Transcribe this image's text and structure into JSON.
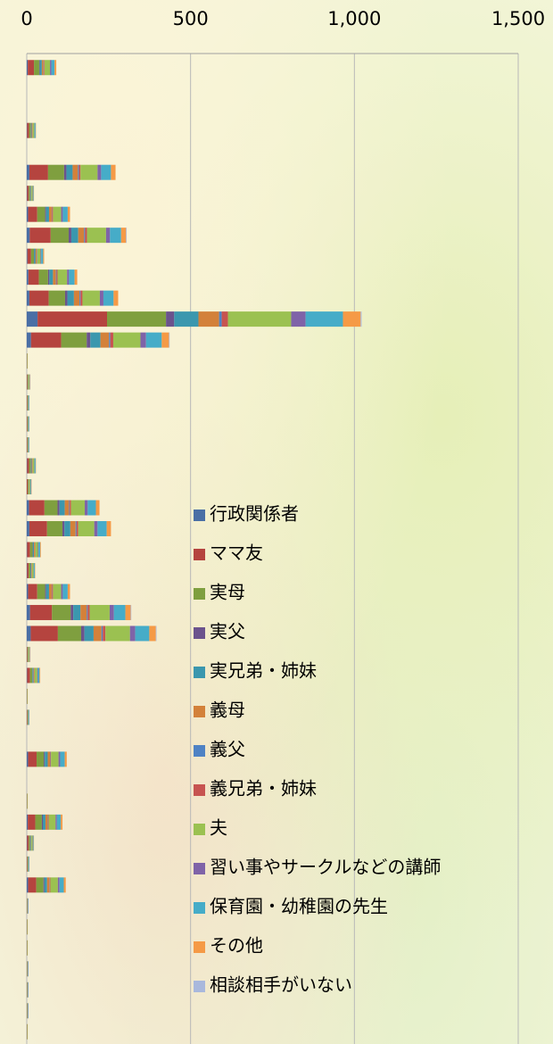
{
  "chart_data": {
    "type": "stacked-barh",
    "categories": [
      null,
      null,
      null,
      null,
      null,
      null,
      null,
      null,
      null,
      null,
      null,
      null,
      null,
      null,
      null,
      null,
      null,
      null,
      null,
      null,
      null,
      null,
      null,
      null,
      null,
      null,
      null,
      null,
      null,
      null,
      null,
      null,
      null,
      null,
      null,
      null,
      null,
      null,
      null,
      null,
      null,
      null,
      null,
      null,
      null,
      null,
      null
    ],
    "xlim": [
      0,
      1500
    ],
    "xticks": [
      0,
      500,
      {
        "value": 1000,
        "label": "1,000"
      },
      {
        "value": 1500,
        "label": "1,500"
      }
    ],
    "grid": true,
    "legend": "center",
    "series": [
      {
        "name": "行政関係者",
        "color": "#4a6fa5",
        "values": [
          3,
          0,
          0,
          1,
          0,
          8,
          1,
          4,
          9,
          2,
          5,
          8,
          33,
          13,
          0,
          0,
          0,
          0,
          0,
          1,
          0,
          7,
          8,
          1,
          1,
          4,
          10,
          12,
          0,
          1,
          0,
          0,
          0,
          4,
          0,
          0,
          3,
          1,
          0,
          4,
          0,
          0,
          0,
          0,
          0,
          0,
          0
        ]
      },
      {
        "name": "ママ友",
        "color": "#b5443f",
        "values": [
          19,
          0,
          0,
          6,
          0,
          57,
          5,
          28,
          64,
          11,
          32,
          59,
          212,
          92,
          1,
          2,
          2,
          2,
          2,
          6,
          3,
          47,
          54,
          9,
          5,
          28,
          67,
          83,
          2,
          9,
          1,
          2,
          0,
          26,
          0,
          1,
          23,
          5,
          2,
          25,
          1,
          1,
          1,
          1,
          1,
          1,
          1
        ]
      },
      {
        "name": "実母",
        "color": "#7f9f3f",
        "values": [
          16,
          0,
          0,
          5,
          0,
          49,
          4,
          24,
          55,
          9,
          28,
          50,
          180,
          78,
          1,
          2,
          1,
          1,
          1,
          5,
          3,
          40,
          47,
          8,
          5,
          24,
          57,
          71,
          2,
          7,
          1,
          1,
          0,
          22,
          0,
          1,
          20,
          4,
          1,
          22,
          1,
          1,
          1,
          1,
          1,
          1,
          1
        ]
      },
      {
        "name": "実父",
        "color": "#6b538d",
        "values": [
          2,
          0,
          0,
          1,
          0,
          7,
          1,
          3,
          8,
          1,
          4,
          7,
          25,
          11,
          0,
          0,
          0,
          0,
          0,
          1,
          0,
          6,
          6,
          1,
          1,
          3,
          8,
          10,
          0,
          1,
          0,
          0,
          0,
          3,
          0,
          0,
          3,
          1,
          0,
          3,
          0,
          0,
          0,
          0,
          0,
          0,
          0
        ]
      },
      {
        "name": "実兄弟・姉妹",
        "color": "#3b97ae",
        "values": [
          6,
          0,
          0,
          2,
          0,
          19,
          2,
          9,
          21,
          4,
          11,
          20,
          74,
          31,
          0,
          1,
          1,
          1,
          1,
          2,
          1,
          16,
          18,
          3,
          2,
          9,
          22,
          28,
          1,
          3,
          0,
          1,
          0,
          9,
          0,
          0,
          8,
          2,
          1,
          8,
          0,
          0,
          0,
          0,
          0,
          0,
          0
        ]
      },
      {
        "name": "義母",
        "color": "#d3813a",
        "values": [
          5,
          0,
          0,
          2,
          0,
          16,
          1,
          8,
          18,
          3,
          9,
          17,
          63,
          26,
          0,
          1,
          0,
          0,
          0,
          2,
          1,
          13,
          16,
          3,
          2,
          8,
          19,
          24,
          1,
          2,
          0,
          0,
          0,
          7,
          0,
          0,
          7,
          1,
          0,
          7,
          0,
          0,
          0,
          0,
          0,
          0,
          0
        ]
      },
      {
        "name": "義父",
        "color": "#4f82c4",
        "values": [
          1,
          0,
          0,
          0,
          0,
          3,
          0,
          1,
          3,
          1,
          2,
          3,
          8,
          4,
          0,
          0,
          0,
          0,
          0,
          0,
          0,
          2,
          3,
          0,
          0,
          1,
          3,
          4,
          0,
          0,
          0,
          0,
          0,
          1,
          0,
          0,
          1,
          0,
          0,
          1,
          0,
          0,
          0,
          0,
          0,
          0,
          0
        ]
      },
      {
        "name": "義兄弟・姉妹",
        "color": "#c75451",
        "values": [
          2,
          0,
          0,
          1,
          0,
          5,
          0,
          3,
          6,
          1,
          3,
          6,
          19,
          9,
          0,
          0,
          0,
          0,
          0,
          1,
          0,
          4,
          5,
          1,
          0,
          3,
          6,
          8,
          0,
          1,
          0,
          0,
          0,
          2,
          0,
          0,
          2,
          0,
          0,
          2,
          0,
          0,
          0,
          0,
          0,
          0,
          0
        ]
      },
      {
        "name": "夫",
        "color": "#9bc151",
        "values": [
          17,
          0,
          0,
          5,
          0,
          52,
          4,
          25,
          58,
          10,
          29,
          53,
          193,
          83,
          1,
          2,
          2,
          2,
          2,
          5,
          3,
          42,
          49,
          8,
          5,
          25,
          61,
          75,
          2,
          8,
          1,
          2,
          0,
          23,
          0,
          1,
          21,
          4,
          2,
          23,
          1,
          1,
          1,
          1,
          1,
          1,
          1
        ]
      },
      {
        "name": "習い事やサークルなどの講師",
        "color": "#7f63a8",
        "values": [
          4,
          0,
          0,
          1,
          0,
          11,
          1,
          5,
          12,
          2,
          6,
          11,
          44,
          17,
          0,
          1,
          1,
          1,
          1,
          1,
          1,
          9,
          10,
          2,
          1,
          5,
          13,
          16,
          1,
          2,
          0,
          1,
          0,
          5,
          0,
          0,
          4,
          1,
          1,
          5,
          1,
          0,
          0,
          1,
          1,
          1,
          0
        ]
      },
      {
        "name": "保育園・幼稚園の先生",
        "color": "#46acc8",
        "values": [
          10,
          0,
          0,
          3,
          0,
          30,
          2,
          15,
          34,
          6,
          17,
          31,
          114,
          48,
          0,
          1,
          1,
          1,
          1,
          3,
          2,
          25,
          28,
          5,
          3,
          15,
          35,
          43,
          1,
          5,
          0,
          1,
          0,
          14,
          0,
          0,
          12,
          2,
          1,
          13,
          1,
          0,
          0,
          1,
          1,
          1,
          0
        ]
      },
      {
        "name": "その他",
        "color": "#f59a46",
        "values": [
          5,
          0,
          0,
          1,
          0,
          14,
          1,
          7,
          15,
          3,
          8,
          14,
          54,
          22,
          0,
          1,
          0,
          0,
          0,
          1,
          1,
          11,
          13,
          2,
          1,
          7,
          16,
          20,
          1,
          2,
          0,
          0,
          0,
          6,
          0,
          0,
          5,
          1,
          0,
          6,
          0,
          0,
          0,
          0,
          0,
          0,
          0
        ]
      },
      {
        "name": "相談相手がいない",
        "color": "#a9b8dc",
        "values": [
          0,
          0,
          0,
          0,
          0,
          0,
          0,
          0,
          2,
          0,
          0,
          0,
          3,
          2,
          0,
          0,
          0,
          0,
          0,
          0,
          0,
          0,
          0,
          0,
          0,
          0,
          2,
          2,
          0,
          0,
          0,
          0,
          0,
          0,
          0,
          0,
          0,
          0,
          0,
          0,
          0,
          0,
          0,
          0,
          0,
          0,
          0
        ]
      }
    ]
  }
}
